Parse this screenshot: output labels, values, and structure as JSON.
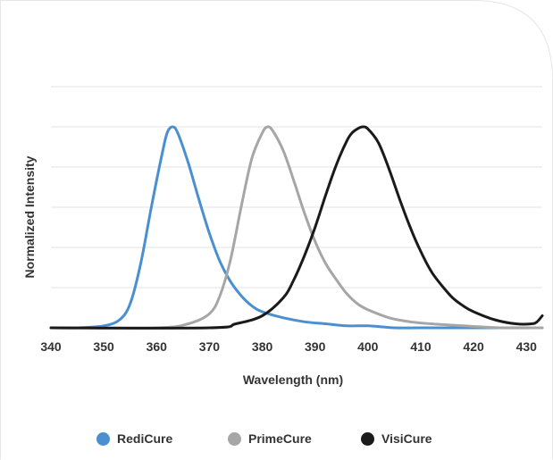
{
  "chart_data": {
    "type": "line",
    "xlabel": "Wavelength (nm)",
    "ylabel": "Normalized Intensity",
    "xlim": [
      340,
      433
    ],
    "ylim": [
      0,
      1
    ],
    "x_ticks": [
      340,
      350,
      360,
      370,
      380,
      390,
      400,
      410,
      420,
      430
    ],
    "grid": true,
    "legend_position": "bottom",
    "series": [
      {
        "name": "RediCure",
        "color": "#4a90d0",
        "x": [
          340,
          345,
          350,
          353,
          355,
          357,
          359,
          361,
          362,
          363,
          364,
          366,
          368,
          370,
          372,
          374,
          376,
          378,
          380,
          384,
          388,
          392,
          396,
          400,
          405,
          410,
          420,
          433
        ],
        "y": [
          0.0,
          0.0,
          0.01,
          0.04,
          0.12,
          0.32,
          0.6,
          0.86,
          0.97,
          1.0,
          0.97,
          0.82,
          0.64,
          0.47,
          0.33,
          0.23,
          0.16,
          0.11,
          0.08,
          0.05,
          0.03,
          0.02,
          0.01,
          0.01,
          0.0,
          0.0,
          0.0,
          0.0
        ]
      },
      {
        "name": "PrimeCure",
        "color": "#a6a6a6",
        "x": [
          340,
          360,
          366,
          370,
          372,
          374,
          376,
          378,
          380,
          381,
          382,
          384,
          386,
          388,
          390,
          392,
          394,
          396,
          398,
          400,
          404,
          408,
          412,
          418,
          425,
          433
        ],
        "y": [
          0.0,
          0.0,
          0.02,
          0.07,
          0.16,
          0.34,
          0.6,
          0.84,
          0.97,
          1.0,
          0.98,
          0.88,
          0.73,
          0.57,
          0.43,
          0.32,
          0.24,
          0.17,
          0.12,
          0.09,
          0.05,
          0.03,
          0.02,
          0.01,
          0.0,
          0.0
        ]
      },
      {
        "name": "VisiCure",
        "color": "#1a1a1a",
        "x": [
          340,
          370,
          375,
          380,
          384,
          386,
          388,
          390,
          392,
          394,
          396,
          397,
          398,
          399,
          400,
          402,
          404,
          406,
          408,
          410,
          412,
          414,
          416,
          418,
          420,
          424,
          428,
          431,
          432,
          433
        ],
        "y": [
          0.0,
          0.0,
          0.02,
          0.06,
          0.15,
          0.24,
          0.36,
          0.5,
          0.66,
          0.81,
          0.93,
          0.97,
          0.99,
          1.0,
          0.99,
          0.92,
          0.79,
          0.64,
          0.5,
          0.38,
          0.28,
          0.21,
          0.15,
          0.11,
          0.08,
          0.04,
          0.02,
          0.02,
          0.03,
          0.06
        ]
      }
    ]
  }
}
